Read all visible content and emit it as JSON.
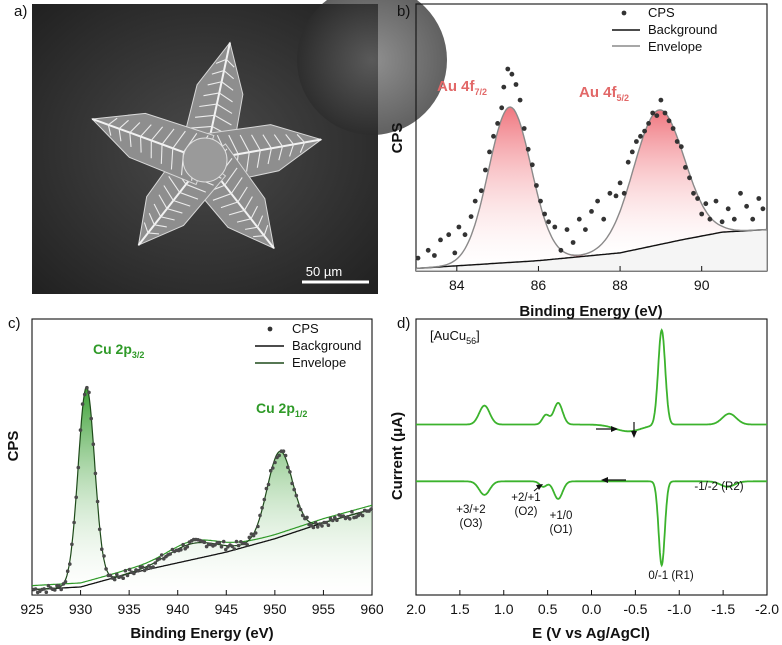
{
  "panels": {
    "a": {
      "label": "a)",
      "scale_bar": "50 µm"
    }
  },
  "colors": {
    "red_label": "#e26868",
    "red_fill": "#f0888f",
    "green": "#2f9a28",
    "cv_green": "#3cb32d",
    "black": "#111111",
    "gray_line": "#8a8a8a",
    "dot": "#333333"
  },
  "chart_data": [
    {
      "id": "b",
      "panel_label": "b)",
      "type": "scatter",
      "title": "",
      "xlabel": "Binding Energy (eV)",
      "ylabel": "CPS",
      "xlim": [
        83,
        91.6
      ],
      "ylim": [
        0,
        1.0
      ],
      "xticks": [
        84,
        86,
        88,
        90
      ],
      "xtick_labels": [
        "84",
        "86",
        "88",
        "90"
      ],
      "legend": [
        "CPS",
        "Background",
        "Envelope"
      ],
      "peaks": [
        {
          "label": "Au 4f",
          "sub": "7/2",
          "position": 85.3,
          "height": 0.6,
          "width": 0.52
        },
        {
          "label": "Au 4f",
          "sub": "5/2",
          "position": 88.95,
          "height": 0.52,
          "width": 0.62
        }
      ],
      "background": [
        [
          83.0,
          0.01
        ],
        [
          86.0,
          0.04
        ],
        [
          88.0,
          0.07
        ],
        [
          89.5,
          0.12
        ],
        [
          90.5,
          0.15
        ],
        [
          91.6,
          0.16
        ]
      ],
      "points": [
        [
          83.05,
          0.05
        ],
        [
          83.3,
          0.08
        ],
        [
          83.45,
          0.06
        ],
        [
          83.6,
          0.12
        ],
        [
          83.8,
          0.14
        ],
        [
          83.95,
          0.07
        ],
        [
          84.05,
          0.17
        ],
        [
          84.2,
          0.14
        ],
        [
          84.35,
          0.21
        ],
        [
          84.45,
          0.27
        ],
        [
          84.6,
          0.31
        ],
        [
          84.7,
          0.39
        ],
        [
          84.8,
          0.46
        ],
        [
          84.9,
          0.52
        ],
        [
          85.0,
          0.57
        ],
        [
          85.1,
          0.63
        ],
        [
          85.15,
          0.71
        ],
        [
          85.25,
          0.78
        ],
        [
          85.35,
          0.76
        ],
        [
          85.45,
          0.72
        ],
        [
          85.55,
          0.66
        ],
        [
          85.65,
          0.55
        ],
        [
          85.75,
          0.47
        ],
        [
          85.85,
          0.41
        ],
        [
          85.95,
          0.33
        ],
        [
          86.05,
          0.27
        ],
        [
          86.15,
          0.22
        ],
        [
          86.25,
          0.19
        ],
        [
          86.4,
          0.17
        ],
        [
          86.55,
          0.08
        ],
        [
          86.7,
          0.16
        ],
        [
          86.85,
          0.11
        ],
        [
          87.0,
          0.2
        ],
        [
          87.15,
          0.16
        ],
        [
          87.3,
          0.23
        ],
        [
          87.45,
          0.27
        ],
        [
          87.6,
          0.2
        ],
        [
          87.75,
          0.3
        ],
        [
          87.9,
          0.29
        ],
        [
          88.0,
          0.34
        ],
        [
          88.1,
          0.3
        ],
        [
          88.2,
          0.42
        ],
        [
          88.3,
          0.46
        ],
        [
          88.4,
          0.5
        ],
        [
          88.5,
          0.52
        ],
        [
          88.6,
          0.54
        ],
        [
          88.7,
          0.57
        ],
        [
          88.8,
          0.61
        ],
        [
          88.9,
          0.6
        ],
        [
          89.0,
          0.66
        ],
        [
          89.1,
          0.61
        ],
        [
          89.2,
          0.58
        ],
        [
          89.3,
          0.55
        ],
        [
          89.4,
          0.5
        ],
        [
          89.5,
          0.48
        ],
        [
          89.6,
          0.4
        ],
        [
          89.7,
          0.36
        ],
        [
          89.8,
          0.3
        ],
        [
          89.9,
          0.28
        ],
        [
          90.0,
          0.22
        ],
        [
          90.1,
          0.26
        ],
        [
          90.2,
          0.2
        ],
        [
          90.35,
          0.27
        ],
        [
          90.5,
          0.19
        ],
        [
          90.65,
          0.24
        ],
        [
          90.8,
          0.2
        ],
        [
          90.95,
          0.3
        ],
        [
          91.1,
          0.25
        ],
        [
          91.25,
          0.2
        ],
        [
          91.4,
          0.28
        ],
        [
          91.5,
          0.24
        ]
      ]
    },
    {
      "id": "c",
      "panel_label": "c)",
      "type": "scatter",
      "title": "",
      "xlabel": "Binding Energy (eV)",
      "ylabel": "CPS",
      "xlim": [
        925,
        960
      ],
      "ylim": [
        0,
        1.0
      ],
      "xticks": [
        925,
        930,
        935,
        940,
        945,
        950,
        955,
        960
      ],
      "xtick_labels": [
        "925",
        "930",
        "935",
        "940",
        "945",
        "950",
        "955",
        "960"
      ],
      "legend": [
        "CPS",
        "Background",
        "Envelope"
      ],
      "peaks": [
        {
          "label": "Cu 2p",
          "sub": "3/2",
          "position": 930.6,
          "height": 0.74,
          "width": 0.85
        },
        {
          "label": "Cu 2p",
          "sub": "1/2",
          "position": 950.5,
          "height": 0.32,
          "width": 1.3
        },
        {
          "label": "",
          "sub": "",
          "position": 941.5,
          "height": 0.06,
          "width": 2.6
        }
      ],
      "background": [
        [
          925.0,
          0.02
        ],
        [
          930.0,
          0.03
        ],
        [
          935.0,
          0.08
        ],
        [
          940.0,
          0.12
        ],
        [
          945.0,
          0.16
        ],
        [
          950.0,
          0.21
        ],
        [
          955.0,
          0.27
        ],
        [
          960.0,
          0.32
        ]
      ],
      "noise_seed": 7
    },
    {
      "id": "d",
      "panel_label": "d)",
      "type": "line",
      "title": "",
      "inset_label": "[AuCu",
      "inset_sub": "56",
      "inset_close": "]",
      "xlabel": "E (V vs Ag/AgCl)",
      "ylabel": "Current (μA)",
      "xlim": [
        2.0,
        -2.0
      ],
      "ylim": [
        -1.0,
        1.0
      ],
      "xticks": [
        2.0,
        1.5,
        1.0,
        0.5,
        0.0,
        -0.5,
        -1.0,
        -1.5,
        -2.0
      ],
      "xtick_labels": [
        "2.0",
        "1.5",
        "1.0",
        "0.5",
        "0.0",
        "-0.5",
        "-1.0",
        "-1.5",
        "-2.0"
      ],
      "upper_trace": {
        "baseline": 0.24,
        "peaks": [
          [
            1.22,
            0.14,
            0.06
          ],
          [
            0.52,
            0.07,
            0.04
          ],
          [
            0.38,
            0.16,
            0.05
          ],
          [
            -0.8,
            0.7,
            0.04
          ],
          [
            -1.57,
            0.08,
            0.08
          ]
        ],
        "dip": [
          [
            -0.42,
            0.05,
            0.15
          ]
        ]
      },
      "lower_trace": {
        "baseline": -0.18,
        "peaks": [
          [
            1.22,
            -0.1,
            0.06
          ],
          [
            0.55,
            -0.04,
            0.04
          ],
          [
            0.38,
            -0.13,
            0.05
          ],
          [
            -0.8,
            -0.62,
            0.035
          ],
          [
            -1.55,
            -0.04,
            0.08
          ]
        ]
      },
      "annotations": [
        {
          "l1": "+3/+2",
          "l2": "(O3)"
        },
        {
          "l1": "+2/+1",
          "l2": "(O2)"
        },
        {
          "l1": "+1/0",
          "l2": "(O1)"
        },
        {
          "l1": "0/-1 (R1)",
          "l2": ""
        },
        {
          "l1": "-1/-2 (R2)",
          "l2": ""
        }
      ]
    }
  ]
}
